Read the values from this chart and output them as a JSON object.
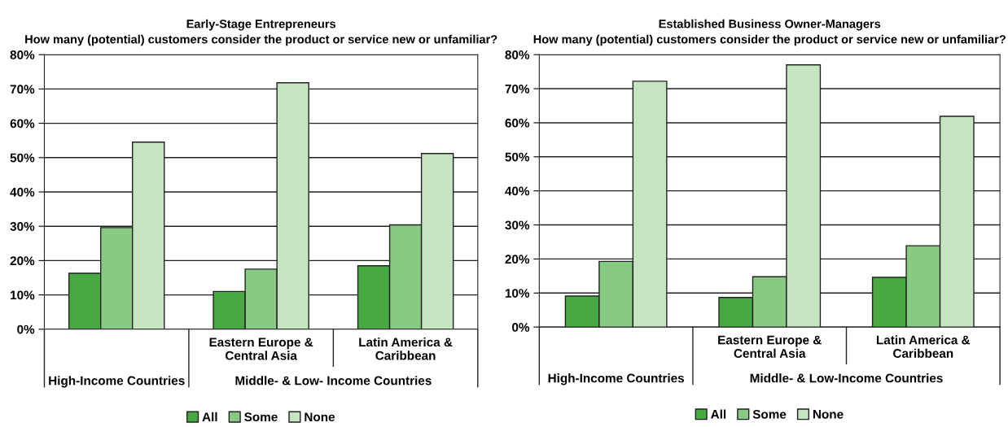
{
  "chart_data": [
    {
      "type": "bar",
      "title": "Early-Stage Entrepreneurs",
      "subtitle": "How many (potential) customers consider the product or service new or unfamiliar?",
      "categories": [
        null,
        "Eastern Europe &\nCentral Asia",
        "Latin America &\nCaribbean"
      ],
      "annotations": [
        "High-Income Countries",
        "Middle- & Low- Income Countries"
      ],
      "series": [
        {
          "name": "All",
          "color": "#48a842",
          "values": [
            16.3,
            11.0,
            18.5
          ]
        },
        {
          "name": "Some",
          "color": "#88c983",
          "values": [
            29.6,
            17.5,
            30.4
          ]
        },
        {
          "name": "None",
          "color": "#c5e4c2",
          "values": [
            54.5,
            71.8,
            51.2
          ]
        }
      ],
      "ylim": [
        0,
        80
      ],
      "yticks": [
        {
          "value": 0,
          "label": "0%"
        },
        {
          "value": 10,
          "label": "10%"
        },
        {
          "value": 20,
          "label": "20%"
        },
        {
          "value": 30,
          "label": "30%"
        },
        {
          "value": 40,
          "label": "40%"
        },
        {
          "value": 50,
          "label": "50%"
        },
        {
          "value": 60,
          "label": "60%"
        },
        {
          "value": 70,
          "label": "70%"
        },
        {
          "value": 80,
          "label": "80%"
        }
      ],
      "grid": "y",
      "legend": "bottom"
    },
    {
      "type": "bar",
      "title": "Established Business Owner-Managers",
      "subtitle": "How many (potential) customers consider the product or service new or unfamiliar?",
      "categories": [
        null,
        "Eastern Europe &\nCentral Asia",
        "Latin America &\nCaribbean"
      ],
      "annotations": [
        "High-Income Countries",
        "Middle- & Low-Income Countries"
      ],
      "series": [
        {
          "name": "All",
          "color": "#48a842",
          "values": [
            9.1,
            8.7,
            14.6
          ]
        },
        {
          "name": "Some",
          "color": "#88c983",
          "values": [
            19.3,
            14.8,
            23.9
          ]
        },
        {
          "name": "None",
          "color": "#c5e4c2",
          "values": [
            72.2,
            77.0,
            61.9
          ]
        }
      ],
      "ylim": [
        0,
        80
      ],
      "yticks": [
        {
          "value": 0,
          "label": "0%"
        },
        {
          "value": 10,
          "label": "10%"
        },
        {
          "value": 20,
          "label": "20%"
        },
        {
          "value": 30,
          "label": "30%"
        },
        {
          "value": 40,
          "label": "40%"
        },
        {
          "value": 50,
          "label": "50%"
        },
        {
          "value": 60,
          "label": "60%"
        },
        {
          "value": 70,
          "label": "70%"
        },
        {
          "value": 80,
          "label": "80%"
        }
      ],
      "grid": "y",
      "legend": "bottom"
    }
  ]
}
